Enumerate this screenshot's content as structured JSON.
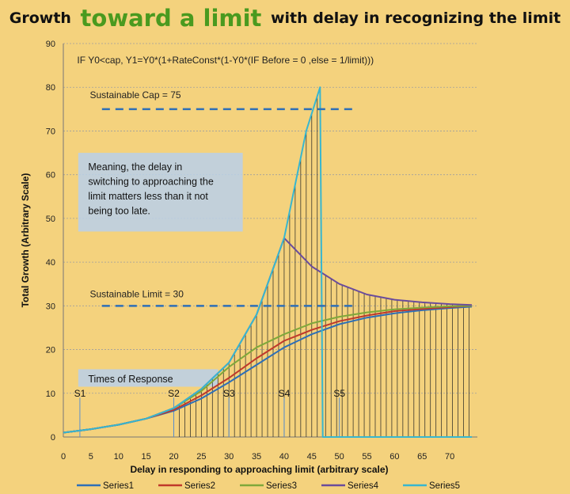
{
  "title": {
    "part1": "Growth",
    "part2": "toward a limit",
    "part3": "with delay in recognizing the limit"
  },
  "colors": {
    "background": "#f4d27d",
    "title_accent": "#4a9a1f",
    "series1": "#2e6fb7",
    "series2": "#c0392b",
    "series3": "#7fa83a",
    "series4": "#6a4c9c",
    "series5": "#38b6cf",
    "annotation_box": "#b9d0ea",
    "dashed_lines": "#2e6fb7"
  },
  "chart_data": {
    "type": "line",
    "xlabel": "Delay in responding to approaching limit (arbitrary scale)",
    "ylabel": "Total Growth (Arbitrary Scale)",
    "xlim": [
      0,
      75
    ],
    "ylim": [
      0,
      90
    ],
    "xticks": [
      0,
      5,
      10,
      15,
      20,
      25,
      30,
      35,
      40,
      45,
      50,
      55,
      60,
      65,
      70
    ],
    "yticks": [
      0,
      10,
      20,
      30,
      40,
      50,
      60,
      70,
      80,
      90
    ],
    "grid": true,
    "formula": "IF Y0<cap,  Y1=Y0*(1+RateConst*(1-Y0*(IF  Before  = 0 ,else = 1/limit)))",
    "annotations": {
      "cap_label": "Sustainable  Cap = 75",
      "cap_value": 75,
      "cap_x_range": [
        7,
        53
      ],
      "limit_label": "Sustainable Limit = 30",
      "limit_value": 30,
      "limit_x_range": [
        7,
        53
      ],
      "meaning_lines": [
        "Meaning, the  delay in",
        "switching to approaching the",
        "limit matters less than it not",
        "being too late."
      ],
      "times_label": "Times of Response"
    },
    "response_markers": [
      {
        "label": "S1",
        "x": 3
      },
      {
        "label": "S2",
        "x": 20
      },
      {
        "label": "S3",
        "x": 30
      },
      {
        "label": "S4",
        "x": 40
      },
      {
        "label": "S5",
        "x": 50
      }
    ],
    "legend": {
      "placement": "bottom",
      "entries": [
        "Series1",
        "Series2",
        "Series3",
        "Series4",
        "Series5"
      ]
    },
    "series": [
      {
        "name": "Series1",
        "points": [
          [
            0,
            1
          ],
          [
            5,
            1.8
          ],
          [
            10,
            2.8
          ],
          [
            15,
            4.2
          ],
          [
            20,
            6
          ],
          [
            25,
            8.8
          ],
          [
            30,
            12.5
          ],
          [
            35,
            16.5
          ],
          [
            40,
            20.5
          ],
          [
            45,
            23.5
          ],
          [
            50,
            25.8
          ],
          [
            55,
            27.3
          ],
          [
            60,
            28.3
          ],
          [
            65,
            29
          ],
          [
            70,
            29.5
          ],
          [
            74,
            29.8
          ]
        ]
      },
      {
        "name": "Series2",
        "points": [
          [
            0,
            1
          ],
          [
            5,
            1.8
          ],
          [
            10,
            2.8
          ],
          [
            15,
            4.2
          ],
          [
            20,
            6.2
          ],
          [
            25,
            9.5
          ],
          [
            30,
            13.5
          ],
          [
            35,
            18
          ],
          [
            40,
            22
          ],
          [
            45,
            24.5
          ],
          [
            50,
            26.5
          ],
          [
            55,
            27.8
          ],
          [
            60,
            28.8
          ],
          [
            65,
            29.3
          ],
          [
            70,
            29.7
          ],
          [
            74,
            30
          ]
        ]
      },
      {
        "name": "Series3",
        "points": [
          [
            0,
            1
          ],
          [
            5,
            1.8
          ],
          [
            10,
            2.8
          ],
          [
            15,
            4.2
          ],
          [
            20,
            6.6
          ],
          [
            25,
            10.5
          ],
          [
            30,
            16
          ],
          [
            35,
            20.5
          ],
          [
            40,
            23.5
          ],
          [
            45,
            26
          ],
          [
            50,
            27.5
          ],
          [
            55,
            28.5
          ],
          [
            60,
            29.2
          ],
          [
            65,
            29.6
          ],
          [
            70,
            29.9
          ],
          [
            74,
            30
          ]
        ]
      },
      {
        "name": "Series4",
        "points": [
          [
            0,
            1
          ],
          [
            5,
            1.8
          ],
          [
            10,
            2.8
          ],
          [
            15,
            4.2
          ],
          [
            20,
            6.6
          ],
          [
            25,
            11
          ],
          [
            30,
            17
          ],
          [
            35,
            28
          ],
          [
            40,
            45.5
          ],
          [
            45,
            39
          ],
          [
            50,
            35
          ],
          [
            55,
            32.6
          ],
          [
            60,
            31.4
          ],
          [
            65,
            30.8
          ],
          [
            70,
            30.4
          ],
          [
            74,
            30.2
          ]
        ]
      },
      {
        "name": "Series5",
        "points": [
          [
            0,
            1
          ],
          [
            5,
            1.8
          ],
          [
            10,
            2.8
          ],
          [
            15,
            4.2
          ],
          [
            20,
            6.6
          ],
          [
            25,
            11
          ],
          [
            30,
            17
          ],
          [
            35,
            28
          ],
          [
            40,
            45.5
          ],
          [
            44,
            70
          ],
          [
            46.5,
            80
          ],
          [
            47,
            0
          ],
          [
            74,
            0
          ]
        ]
      }
    ]
  }
}
